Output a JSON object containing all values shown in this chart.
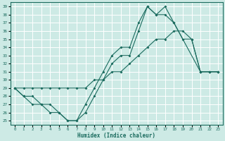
{
  "xlabel": "Humidex (Indice chaleur)",
  "bg_color": "#cdeae5",
  "grid_color": "#b0d8d2",
  "line_color": "#1a6b5e",
  "xlim": [
    -0.5,
    23.5
  ],
  "ylim": [
    24.5,
    39.5
  ],
  "xticks": [
    0,
    1,
    2,
    3,
    4,
    5,
    6,
    7,
    8,
    9,
    10,
    11,
    12,
    13,
    14,
    15,
    16,
    17,
    18,
    19,
    20,
    21,
    22,
    23
  ],
  "yticks": [
    25,
    26,
    27,
    28,
    29,
    30,
    31,
    32,
    33,
    34,
    35,
    36,
    37,
    38,
    39
  ],
  "line1_x": [
    0,
    1,
    2,
    3,
    4,
    5,
    6,
    7,
    8,
    9,
    10,
    11,
    12,
    13,
    14,
    15,
    16,
    17,
    18,
    21,
    22,
    23
  ],
  "line1_y": [
    29,
    28,
    27,
    27,
    26,
    26,
    25,
    25,
    26,
    28,
    30,
    32,
    33,
    33,
    36,
    39,
    38,
    38,
    37,
    31,
    31,
    31
  ],
  "line2_x": [
    0,
    1,
    2,
    3,
    4,
    5,
    6,
    7,
    8,
    9,
    10,
    11,
    12,
    13,
    14,
    15,
    16,
    17,
    18,
    19,
    20,
    21,
    22,
    23
  ],
  "line2_y": [
    29,
    29,
    29,
    29,
    29,
    29,
    29,
    29,
    29,
    30,
    30,
    31,
    31,
    32,
    33,
    34,
    35,
    35,
    36,
    36,
    35,
    31,
    31,
    31
  ],
  "line3_x": [
    0,
    1,
    2,
    3,
    4,
    5,
    6,
    7,
    8,
    9,
    10,
    11,
    12,
    13,
    14,
    15,
    16,
    17,
    18,
    19,
    20,
    21,
    22,
    23
  ],
  "line3_y": [
    29,
    28,
    28,
    27,
    27,
    26,
    25,
    25,
    27,
    29,
    31,
    33,
    34,
    34,
    37,
    39,
    38,
    39,
    37,
    35,
    35,
    31,
    31,
    31
  ]
}
